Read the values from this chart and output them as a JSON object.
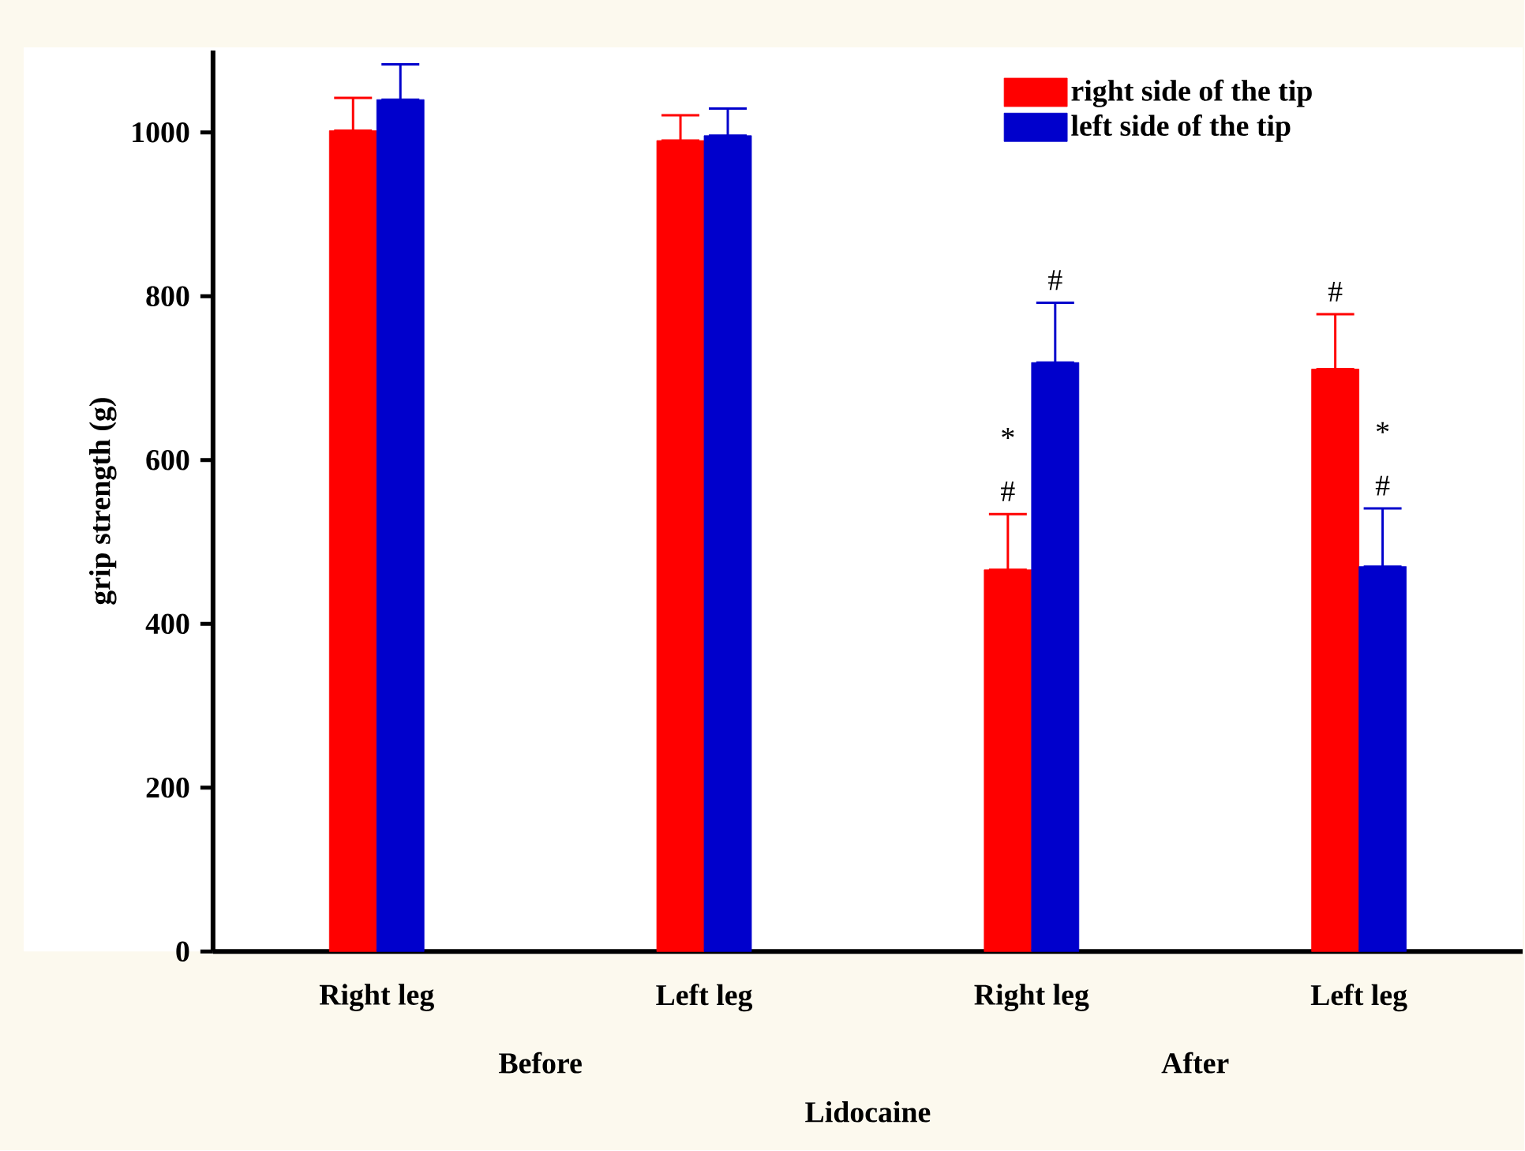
{
  "chart_data": {
    "type": "bar",
    "xlabel": "Lidocaine",
    "ylabel": "grip strength (g)",
    "categories": [
      "Right leg",
      "Left leg",
      "Right leg",
      "Left leg"
    ],
    "series": [
      {
        "name": "right side of the tip",
        "color": "#ff0000",
        "values": [
          1002,
          990,
          466,
          711
        ],
        "errors": [
          [
            1002,
            1042
          ],
          [
            990,
            1021
          ],
          [
            466,
            534
          ],
          [
            711,
            778
          ]
        ]
      },
      {
        "name": "left side of the tip",
        "color": "#0000cc",
        "values": [
          1040,
          996,
          719,
          470
        ],
        "errors": [
          [
            1040,
            1083
          ],
          [
            996,
            1029
          ],
          [
            719,
            792
          ],
          [
            470,
            541
          ]
        ]
      }
    ],
    "ylim": [
      0,
      1100
    ],
    "yticks": [
      0,
      200,
      400,
      600,
      800,
      1000
    ],
    "legend": "top right",
    "annotations": [
      "Before",
      "After",
      "#",
      "*",
      "#",
      "#",
      "*",
      "#"
    ]
  }
}
